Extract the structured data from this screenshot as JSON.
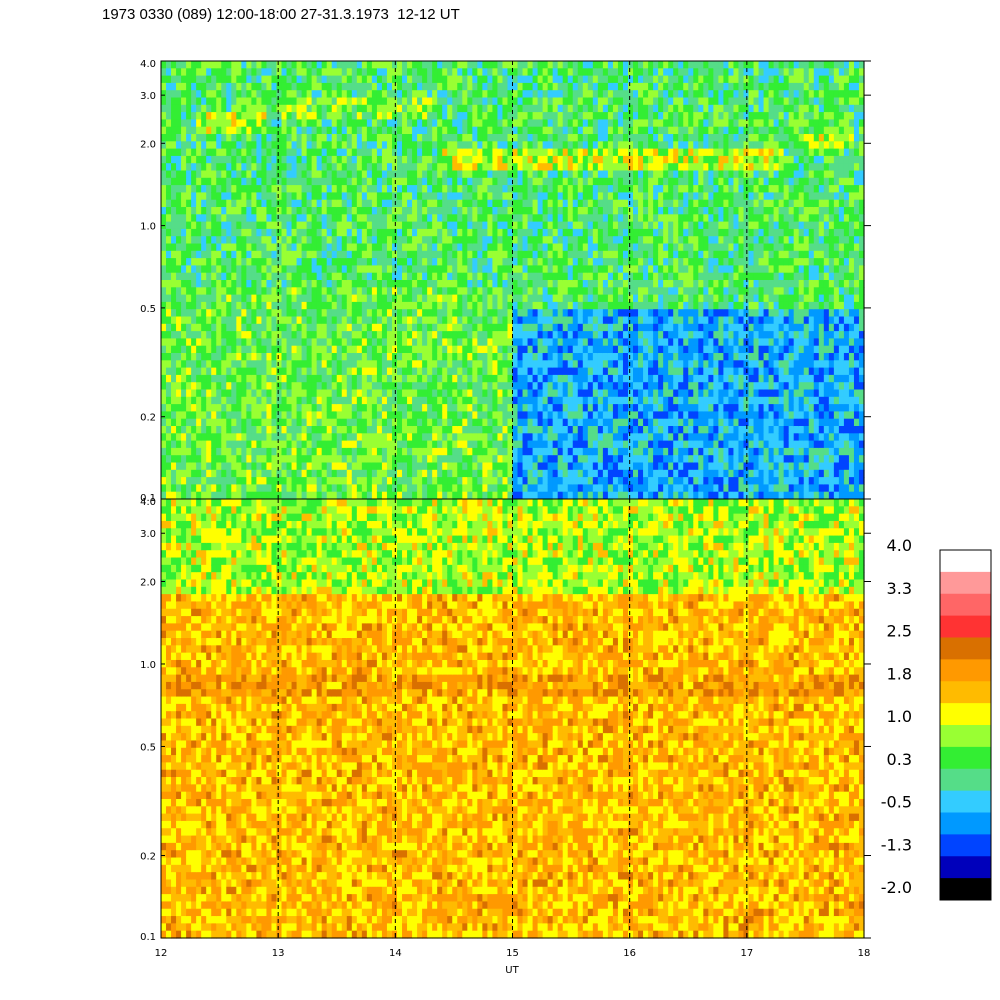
{
  "title": "1973 0330 (089) 12:00-18:00 27-31.3.1973  12-12 UT",
  "chart_data": {
    "type": "heatmap",
    "title": "1973 0330 (089) 12:00-18:00 27-31.3.1973  12-12 UT",
    "xlabel": "UT",
    "xlim": [
      12,
      18
    ],
    "x_ticks": [
      12,
      13,
      14,
      15,
      16,
      17,
      18
    ],
    "x_tick_labels": [
      "12",
      "13",
      "14",
      "15",
      "16",
      "17",
      "18"
    ],
    "y_scale": "log",
    "ylim": [
      0.1,
      4.0
    ],
    "y_ticks": [
      0.1,
      0.2,
      0.5,
      1.0,
      2.0,
      3.0,
      4.0
    ],
    "y_tick_labels": [
      "0.1",
      "0.2",
      "0.5",
      "1.0",
      "2.0",
      "3.0",
      "4.0"
    ],
    "vertical_dashed_lines_at": [
      13,
      14,
      15,
      16,
      17
    ],
    "panels": [
      {
        "name": "upper",
        "base_level": 0.3,
        "bands": [
          {
            "x_start": 12.3,
            "x_end": 12.9,
            "y_center": 2.4,
            "level": 1.0
          },
          {
            "x_start": 13.0,
            "x_end": 14.3,
            "y_center": 2.7,
            "level": 0.6
          },
          {
            "x_start": 14.35,
            "x_end": 17.3,
            "y_center": 1.75,
            "level": 1.0
          },
          {
            "x_start": 17.45,
            "x_end": 17.9,
            "y_center": 2.05,
            "level": 1.0
          }
        ],
        "regions": [
          {
            "x_start": 12,
            "x_end": 15,
            "y_min": 0.1,
            "y_max": 0.6,
            "level": 0.5
          },
          {
            "x_start": 15,
            "x_end": 18,
            "y_min": 0.1,
            "y_max": 0.5,
            "level": -0.5
          }
        ]
      },
      {
        "name": "lower",
        "base_level": 1.6,
        "bands": [
          {
            "x_start": 12,
            "x_end": 18,
            "y_center": 0.85,
            "level": 1.9
          }
        ],
        "regions": [
          {
            "x_start": 12,
            "x_end": 18,
            "y_min": 1.8,
            "y_max": 4.0,
            "level": 0.9
          }
        ]
      }
    ],
    "colorbar": {
      "labels": [
        "4.0",
        "3.3",
        "2.5",
        "1.8",
        "1.0",
        "0.3",
        "-0.5",
        "-1.3",
        "-2.0"
      ],
      "range": [
        -2.0,
        4.0
      ],
      "colors_top_to_bottom": [
        "#ffffff",
        "#ff9999",
        "#ff6666",
        "#ff3333",
        "#d97000",
        "#ff9900",
        "#ffbb00",
        "#ffff00",
        "#99ff33",
        "#33ee33",
        "#55dd88",
        "#33ccff",
        "#0099ff",
        "#0044ff",
        "#0000bb",
        "#000000"
      ]
    }
  }
}
